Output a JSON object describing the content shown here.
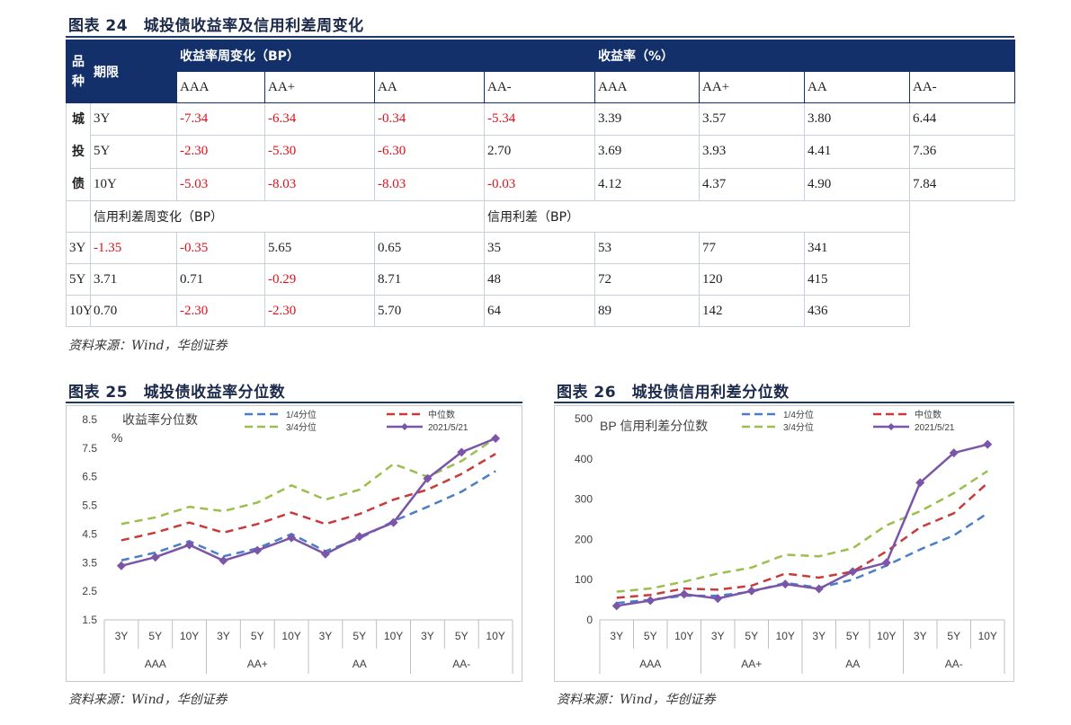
{
  "fig24": {
    "title": "图表 24　城投债收益率及信用利差周变化",
    "source": "资料来源：Wind，华创证券",
    "header": {
      "kind": "品种",
      "term": "期限",
      "group1": "收益率周变化（BP）",
      "group2": "收益率（%）",
      "cols": [
        "AAA",
        "AA+",
        "AA",
        "AA-",
        "AAA",
        "AA+",
        "AA",
        "AA-"
      ]
    },
    "category": "城投债",
    "yield_rows": [
      {
        "term": "3Y",
        "cells": [
          "-7.34",
          "-6.34",
          "-0.34",
          "-5.34",
          "3.39",
          "3.57",
          "3.80",
          "6.44"
        ]
      },
      {
        "term": "5Y",
        "cells": [
          "-2.30",
          "-5.30",
          "-6.30",
          "2.70",
          "3.69",
          "3.93",
          "4.41",
          "7.36"
        ]
      },
      {
        "term": "10Y",
        "cells": [
          "-5.03",
          "-8.03",
          "-8.03",
          "-0.03",
          "4.12",
          "4.37",
          "4.90",
          "7.84"
        ]
      }
    ],
    "sub_header": {
      "group1": "信用利差周变化（BP）",
      "group2": "信用利差（BP）"
    },
    "spread_rows": [
      {
        "term": "3Y",
        "cells": [
          "-1.35",
          "-0.35",
          "5.65",
          "0.65",
          "35",
          "53",
          "77",
          "341"
        ]
      },
      {
        "term": "5Y",
        "cells": [
          "3.71",
          "0.71",
          "-0.29",
          "8.71",
          "48",
          "72",
          "120",
          "415"
        ]
      },
      {
        "term": "10Y",
        "cells": [
          "0.70",
          "-2.30",
          "-2.30",
          "5.70",
          "64",
          "89",
          "142",
          "436"
        ]
      }
    ]
  },
  "chart_data": [
    {
      "type": "line",
      "fig_title": "图表 25　城投债收益率分位数",
      "source": "资料来源：Wind，华创证券",
      "inner_title": "收益率分位数",
      "unit": "%",
      "categories": [
        "3Y",
        "5Y",
        "10Y",
        "3Y",
        "5Y",
        "10Y",
        "3Y",
        "5Y",
        "10Y",
        "3Y",
        "5Y",
        "10Y"
      ],
      "groups": [
        "AAA",
        "AA+",
        "AA",
        "AA-"
      ],
      "yticks": [
        "8.5",
        "7.5",
        "6.5",
        "5.5",
        "4.5",
        "3.5",
        "2.5",
        "1.5"
      ],
      "ylim": [
        1.5,
        8.5
      ],
      "legend_position": "top",
      "series": [
        {
          "name": "1/4分位",
          "style": "dash",
          "color": "#4a7ec7",
          "values": [
            3.58,
            3.85,
            4.25,
            3.72,
            4.0,
            4.5,
            3.9,
            4.35,
            4.95,
            5.45,
            5.98,
            6.7
          ]
        },
        {
          "name": "中位数",
          "style": "dash",
          "color": "#c93b3b",
          "values": [
            4.28,
            4.55,
            4.9,
            4.55,
            4.85,
            5.25,
            4.85,
            5.2,
            5.7,
            6.05,
            6.6,
            7.3
          ]
        },
        {
          "name": "3/4分位",
          "style": "dash",
          "color": "#9bbf4c",
          "values": [
            4.85,
            5.08,
            5.45,
            5.3,
            5.6,
            6.2,
            5.7,
            6.05,
            6.95,
            6.5,
            7.05,
            7.85
          ]
        },
        {
          "name": "2021/5/21",
          "style": "solid",
          "color": "#7a55a8",
          "values": [
            3.39,
            3.69,
            4.12,
            3.57,
            3.93,
            4.37,
            3.8,
            4.41,
            4.9,
            6.44,
            7.36,
            7.84
          ]
        }
      ]
    },
    {
      "type": "line",
      "fig_title": "图表 26　城投债信用利差分位数",
      "source": "资料来源：Wind，华创证券",
      "inner_title": "BP 信用利差分位数",
      "unit": "",
      "categories": [
        "3Y",
        "5Y",
        "10Y",
        "3Y",
        "5Y",
        "10Y",
        "3Y",
        "5Y",
        "10Y",
        "3Y",
        "5Y",
        "10Y"
      ],
      "groups": [
        "AAA",
        "AA+",
        "AA",
        "AA-"
      ],
      "yticks": [
        "500",
        "400",
        "300",
        "200",
        "100",
        "0"
      ],
      "ylim": [
        0,
        500
      ],
      "legend_position": "top",
      "series": [
        {
          "name": "1/4分位",
          "style": "dash",
          "color": "#4a7ec7",
          "values": [
            42,
            50,
            60,
            60,
            70,
            92,
            80,
            100,
            135,
            175,
            210,
            265
          ]
        },
        {
          "name": "中位数",
          "style": "dash",
          "color": "#c93b3b",
          "values": [
            55,
            62,
            78,
            75,
            85,
            115,
            105,
            120,
            170,
            230,
            265,
            340
          ]
        },
        {
          "name": "3/4分位",
          "style": "dash",
          "color": "#9bbf4c",
          "values": [
            70,
            78,
            95,
            115,
            130,
            162,
            158,
            178,
            235,
            270,
            315,
            370
          ]
        },
        {
          "name": "2021/5/21",
          "style": "solid",
          "color": "#7a55a8",
          "values": [
            35,
            48,
            64,
            53,
            72,
            89,
            77,
            120,
            142,
            341,
            415,
            436
          ]
        }
      ]
    }
  ]
}
